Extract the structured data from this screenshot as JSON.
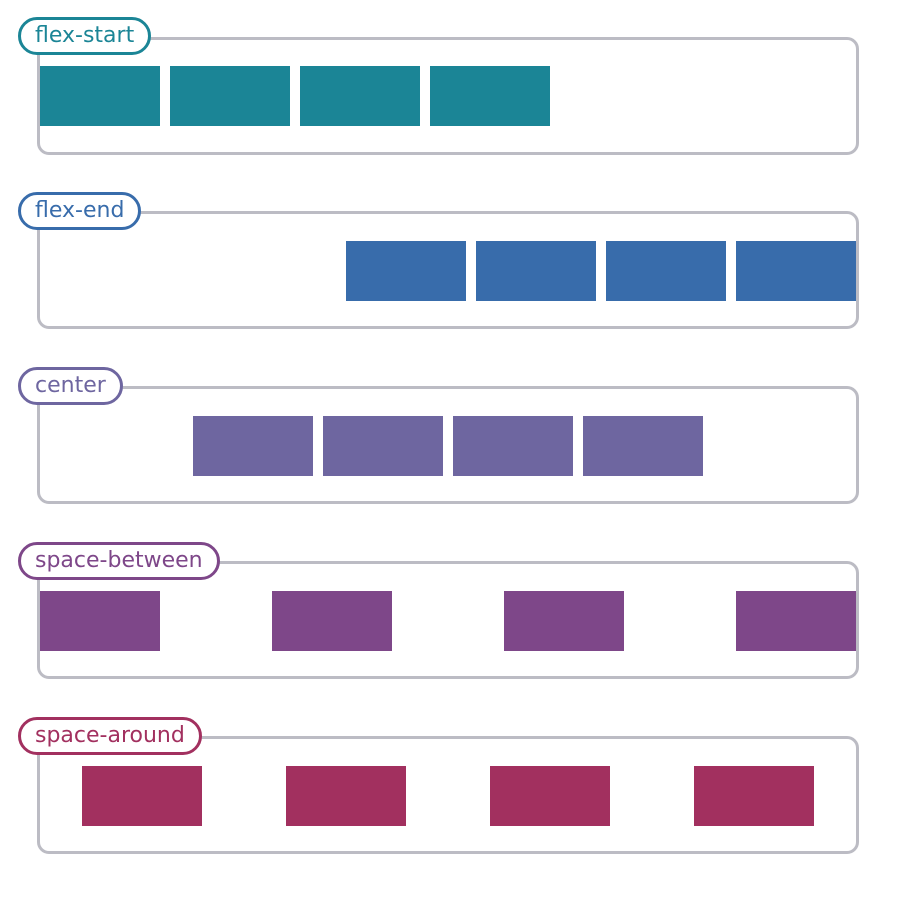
{
  "rows": [
    {
      "label": "flex-start",
      "justify": "flex-start",
      "color": "#1b8596",
      "boxes": 4
    },
    {
      "label": "flex-end",
      "justify": "flex-end",
      "color": "#386cab",
      "boxes": 4
    },
    {
      "label": "center",
      "justify": "center",
      "color": "#6e66a0",
      "boxes": 4
    },
    {
      "label": "space-between",
      "justify": "space-between",
      "color": "#7e4789",
      "boxes": 4
    },
    {
      "label": "space-around",
      "justify": "space-around",
      "color": "#a2305f",
      "boxes": 4
    }
  ]
}
